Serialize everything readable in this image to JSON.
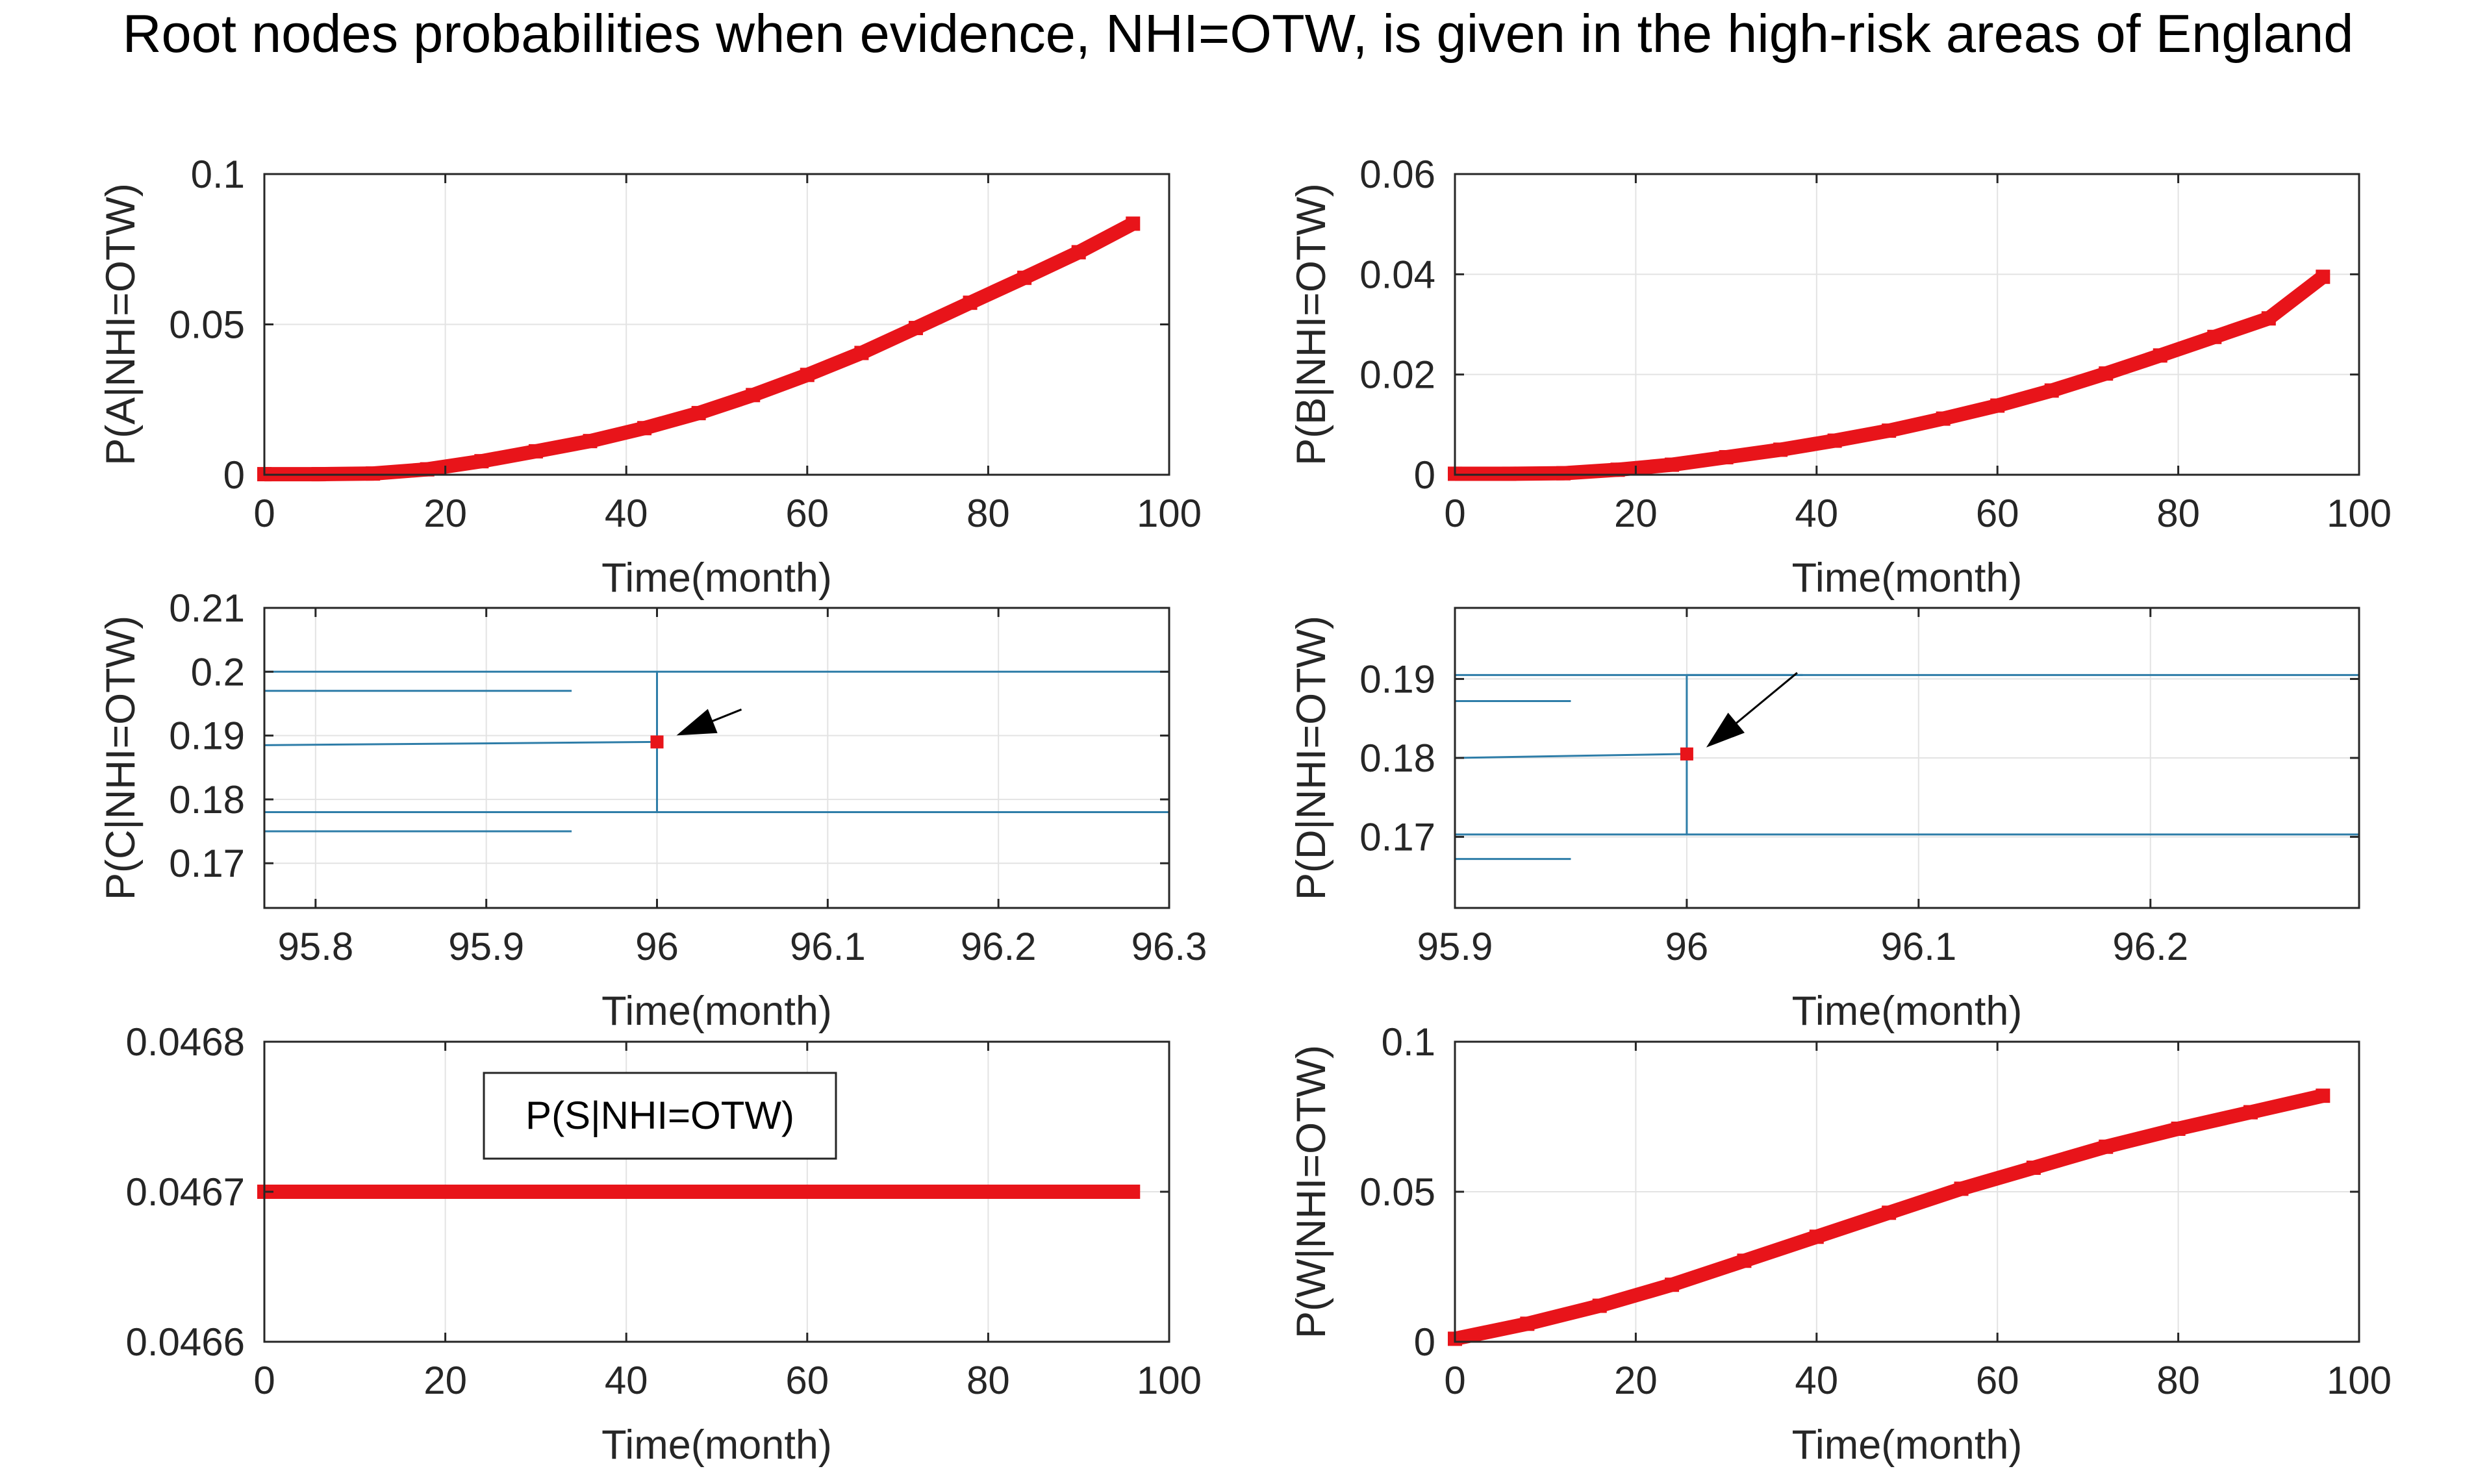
{
  "figure_title": "Root nodes probabilities when evidence, NHI=OTW, is given in the high-risk areas of England",
  "colors": {
    "marker": "#e8141a",
    "zoom_line": "#2e7da8",
    "grid": "#e3e3e3",
    "axes": "#262626",
    "background": "#ffffff"
  },
  "chart_data": [
    {
      "type": "line",
      "id": "A",
      "ylabel": "P(A|NHI=OTW)",
      "xlabel": "Time(month)",
      "xlim": [
        0,
        100
      ],
      "ylim": [
        0,
        0.1
      ],
      "xticks": [
        0,
        20,
        40,
        60,
        80,
        100
      ],
      "yticks": [
        0,
        0.05,
        0.1
      ],
      "ytick_labels": [
        "0",
        "0.05",
        "0.1"
      ],
      "grid": true,
      "series": [
        {
          "marker": "square",
          "x": [
            0,
            6,
            12,
            18,
            24,
            30,
            36,
            42,
            48,
            54,
            60,
            66,
            72,
            78,
            84,
            90,
            96
          ],
          "y": [
            0.0002,
            0.0002,
            0.0004,
            0.0018,
            0.0045,
            0.0078,
            0.0112,
            0.0155,
            0.0205,
            0.0265,
            0.0332,
            0.0405,
            0.0488,
            0.0572,
            0.0655,
            0.074,
            0.0835
          ]
        }
      ]
    },
    {
      "type": "line",
      "id": "B",
      "ylabel": "P(B|NHI=OTW)",
      "xlabel": "Time(month)",
      "xlim": [
        0,
        100
      ],
      "ylim": [
        0,
        0.06
      ],
      "xticks": [
        0,
        20,
        40,
        60,
        80,
        100
      ],
      "yticks": [
        0,
        0.02,
        0.04,
        0.06
      ],
      "ytick_labels": [
        "0",
        "0.02",
        "0.04",
        "0.06"
      ],
      "grid": true,
      "series": [
        {
          "marker": "square",
          "x": [
            0,
            6,
            12,
            18,
            24,
            30,
            36,
            42,
            48,
            54,
            60,
            66,
            72,
            78,
            84,
            90,
            96
          ],
          "y": [
            0.0002,
            0.0002,
            0.0003,
            0.001,
            0.002,
            0.0035,
            0.005,
            0.0068,
            0.0088,
            0.0112,
            0.0138,
            0.0168,
            0.0202,
            0.0238,
            0.0275,
            0.0312,
            0.0395
          ]
        }
      ]
    },
    {
      "type": "line",
      "id": "C",
      "ylabel": "P(C|NHI=OTW)",
      "xlabel": "Time(month)",
      "xlim": [
        95.77,
        96.3
      ],
      "ylim": [
        0.163,
        0.21
      ],
      "xticks": [
        95.8,
        95.9,
        96,
        96.1,
        96.2,
        96.3
      ],
      "xtick_labels": [
        "95.8",
        "95.9",
        "96",
        "96.1",
        "96.2",
        "96.3"
      ],
      "yticks": [
        0.17,
        0.18,
        0.19,
        0.2,
        0.21
      ],
      "ytick_labels": [
        "0.17",
        "0.18",
        "0.19",
        "0.2",
        "0.21"
      ],
      "grid": true,
      "annotation": "arrow pointing to the data point",
      "point": {
        "x": 96,
        "y": 0.189
      },
      "zoom_lines": [
        {
          "x": [
            95.77,
            96.3
          ],
          "y": [
            0.2,
            0.2
          ]
        },
        {
          "x": [
            95.77,
            95.95
          ],
          "y": [
            0.197,
            0.197
          ]
        },
        {
          "x": [
            95.77,
            96.0
          ],
          "y": [
            0.1885,
            0.189
          ]
        },
        {
          "x": [
            95.77,
            96.3
          ],
          "y": [
            0.178,
            0.178
          ]
        },
        {
          "x": [
            95.77,
            95.95
          ],
          "y": [
            0.175,
            0.175
          ]
        },
        {
          "x": [
            96.0,
            96.0
          ],
          "y": [
            0.178,
            0.2
          ]
        }
      ]
    },
    {
      "type": "line",
      "id": "D",
      "ylabel": "P(D|NHI=OTW)",
      "xlabel": "Time(month)",
      "xlim": [
        95.9,
        96.29
      ],
      "ylim": [
        0.161,
        0.199
      ],
      "xticks": [
        95.9,
        96,
        96.1,
        96.2
      ],
      "xtick_labels": [
        "95.9",
        "96",
        "96.1",
        "96.2"
      ],
      "yticks": [
        0.17,
        0.18,
        0.19
      ],
      "ytick_labels": [
        "0.17",
        "0.18",
        "0.19"
      ],
      "grid": true,
      "annotation": "arrow pointing to the data point",
      "point": {
        "x": 96,
        "y": 0.1805
      },
      "zoom_lines": [
        {
          "x": [
            95.9,
            96.29
          ],
          "y": [
            0.1905,
            0.1905
          ]
        },
        {
          "x": [
            95.9,
            95.95
          ],
          "y": [
            0.1872,
            0.1872
          ]
        },
        {
          "x": [
            95.9,
            96.0
          ],
          "y": [
            0.18,
            0.1805
          ]
        },
        {
          "x": [
            95.9,
            96.29
          ],
          "y": [
            0.1703,
            0.1703
          ]
        },
        {
          "x": [
            95.9,
            95.95
          ],
          "y": [
            0.1672,
            0.1672
          ]
        },
        {
          "x": [
            96.0,
            96.0
          ],
          "y": [
            0.1703,
            0.1905
          ]
        },
        {
          "x": [
            96.0,
            96.05
          ],
          "y": [
            0.1905,
            0.1905
          ]
        }
      ]
    },
    {
      "type": "line",
      "id": "S",
      "ylabel": "",
      "xlabel": "Time(month)",
      "legend": "P(S|NHI=OTW)",
      "legend_position": "upper-left",
      "xlim": [
        0,
        100
      ],
      "ylim": [
        0.0466,
        0.0468
      ],
      "xticks": [
        0,
        20,
        40,
        60,
        80,
        100
      ],
      "yticks": [
        0.0466,
        0.0467,
        0.0468
      ],
      "ytick_labels": [
        "0.0466",
        "0.0467",
        "0.0468"
      ],
      "grid": true,
      "series": [
        {
          "marker": "square",
          "x": [
            0,
            96
          ],
          "y": [
            0.0467,
            0.0467
          ]
        }
      ]
    },
    {
      "type": "line",
      "id": "W",
      "ylabel": "P(W|NHI=OTW)",
      "xlabel": "Time(month)",
      "xlim": [
        0,
        100
      ],
      "ylim": [
        0,
        0.1
      ],
      "xticks": [
        0,
        20,
        40,
        60,
        80,
        100
      ],
      "yticks": [
        0,
        0.05,
        0.1
      ],
      "ytick_labels": [
        "0",
        "0.05",
        "0.1"
      ],
      "grid": true,
      "series": [
        {
          "marker": "square",
          "x": [
            0,
            8,
            16,
            24,
            32,
            40,
            48,
            56,
            64,
            72,
            80,
            88,
            96
          ],
          "y": [
            0.001,
            0.006,
            0.012,
            0.019,
            0.027,
            0.035,
            0.043,
            0.051,
            0.058,
            0.065,
            0.071,
            0.0765,
            0.082
          ]
        }
      ]
    }
  ]
}
